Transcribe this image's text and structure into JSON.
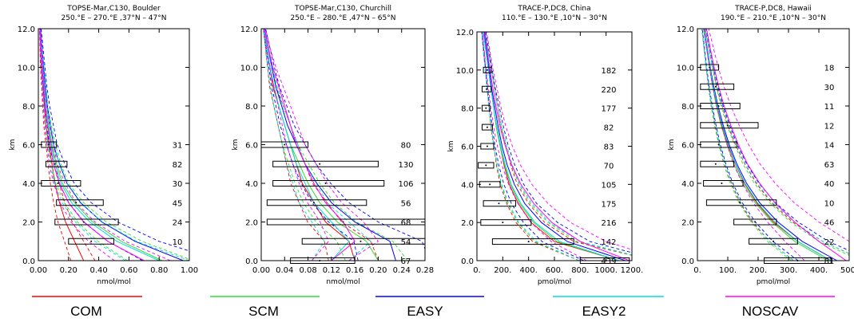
{
  "legend": [
    {
      "name": "COM",
      "color": "#ff0000"
    },
    {
      "name": "SCM",
      "color": "#33dd33"
    },
    {
      "name": "EASY",
      "color": "#0000ff"
    },
    {
      "name": "EASY2",
      "color": "#00dddd"
    },
    {
      "name": "NOSCAV",
      "color": "#ff00ff"
    }
  ],
  "chart_data": [
    {
      "type": "line",
      "title": "TOPSE-Mar,C130, Boulder",
      "subtitle": "250.°E – 270.°E ,37°N – 47°N",
      "xlabel": "nmol/mol",
      "ylabel": "km",
      "xlim": [
        0,
        1.0
      ],
      "ylim": [
        0,
        12
      ],
      "xticks": [
        0,
        0.2,
        0.4,
        0.6,
        0.8,
        1.0
      ],
      "xtick_labels": [
        "0.00",
        "0.20",
        "0.40",
        "0.60",
        "0.80",
        "1.00"
      ],
      "yticks": [
        0,
        2,
        4,
        6,
        8,
        10,
        12
      ],
      "ytick_labels": [
        "0.0",
        "2.0",
        "4.0",
        "6.0",
        "8.0",
        "10.0",
        "12.0"
      ],
      "observations": [
        {
          "alt": 1,
          "xmin": 0.2,
          "xmax": 0.5,
          "mean": 0.35,
          "n": "10"
        },
        {
          "alt": 2,
          "xmin": 0.11,
          "xmax": 0.53,
          "mean": 0.3,
          "n": "24"
        },
        {
          "alt": 3,
          "xmin": 0.12,
          "xmax": 0.43,
          "mean": 0.25,
          "n": "45"
        },
        {
          "alt": 4,
          "xmin": 0.02,
          "xmax": 0.28,
          "mean": 0.13,
          "n": "30"
        },
        {
          "alt": 5,
          "xmin": 0.05,
          "xmax": 0.19,
          "mean": 0.11,
          "n": "82"
        },
        {
          "alt": 6,
          "xmin": 0.02,
          "xmax": 0.12,
          "mean": 0.07,
          "n": "31"
        }
      ],
      "series": [
        {
          "name": "COM",
          "x": [
            0.3,
            0.24,
            0.18,
            0.14,
            0.11,
            0.09,
            0.07,
            0.05,
            0.04,
            0.03,
            0.02,
            0.015,
            0.01
          ]
        },
        {
          "name": "SCM",
          "x": [
            0.82,
            0.55,
            0.36,
            0.24,
            0.16,
            0.12,
            0.09,
            0.07,
            0.05,
            0.04,
            0.03,
            0.02,
            0.01
          ]
        },
        {
          "name": "EASY",
          "x": [
            0.96,
            0.64,
            0.42,
            0.28,
            0.19,
            0.14,
            0.1,
            0.08,
            0.06,
            0.045,
            0.035,
            0.025,
            0.015
          ]
        },
        {
          "name": "EASY2",
          "x": [
            0.8,
            0.52,
            0.34,
            0.22,
            0.15,
            0.11,
            0.085,
            0.065,
            0.05,
            0.04,
            0.03,
            0.02,
            0.01
          ]
        },
        {
          "name": "NOSCAV",
          "x": [
            0.7,
            0.46,
            0.3,
            0.2,
            0.14,
            0.1,
            0.08,
            0.06,
            0.045,
            0.035,
            0.025,
            0.018,
            0.01
          ]
        }
      ]
    },
    {
      "type": "line",
      "title": "TOPSE-Mar,C130, Churchill",
      "subtitle": "250.°E – 280.°E ,47°N – 65°N",
      "xlabel": "nmol/mol",
      "ylabel": "km",
      "xlim": [
        0,
        0.28
      ],
      "ylim": [
        0,
        12
      ],
      "xticks": [
        0,
        0.04,
        0.08,
        0.12,
        0.16,
        0.2,
        0.24,
        0.28
      ],
      "xtick_labels": [
        "0.00",
        "0.04",
        "0.08",
        "0.12",
        "0.16",
        "0.20",
        "0.24",
        "0.28"
      ],
      "yticks": [
        0,
        2,
        4,
        6,
        8,
        10,
        12
      ],
      "ytick_labels": [
        "0.0",
        "2.0",
        "4.0",
        "6.0",
        "8.0",
        "10.0",
        "12.0"
      ],
      "observations": [
        {
          "alt": 0,
          "xmin": 0.05,
          "xmax": 0.16,
          "mean": 0.1,
          "n": "67"
        },
        {
          "alt": 1,
          "xmin": 0.07,
          "xmax": 0.28,
          "mean": 0.17,
          "n": "54"
        },
        {
          "alt": 2,
          "xmin": 0.01,
          "xmax": 0.29,
          "mean": 0.14,
          "n": "68"
        },
        {
          "alt": 3,
          "xmin": 0.01,
          "xmax": 0.18,
          "mean": 0.09,
          "n": "56"
        },
        {
          "alt": 4,
          "xmin": 0.02,
          "xmax": 0.21,
          "mean": 0.11,
          "n": "106"
        },
        {
          "alt": 5,
          "xmin": 0.02,
          "xmax": 0.2,
          "mean": 0.1,
          "n": "130"
        },
        {
          "alt": 6,
          "xmin": 0.0,
          "xmax": 0.08,
          "mean": 0.04,
          "n": "80"
        }
      ],
      "series": [
        {
          "name": "COM",
          "x": [
            0.16,
            0.15,
            0.11,
            0.09,
            0.07,
            0.06,
            0.05,
            0.04,
            0.03,
            0.02,
            0.015,
            0.01,
            0.005
          ]
        },
        {
          "name": "SCM",
          "x": [
            0.2,
            0.18,
            0.13,
            0.1,
            0.08,
            0.065,
            0.05,
            0.04,
            0.03,
            0.022,
            0.015,
            0.01,
            0.005
          ]
        },
        {
          "name": "EASY",
          "x": [
            0.23,
            0.22,
            0.16,
            0.12,
            0.095,
            0.075,
            0.06,
            0.045,
            0.035,
            0.025,
            0.018,
            0.012,
            0.006
          ]
        },
        {
          "name": "EASY2",
          "x": [
            0.12,
            0.15,
            0.12,
            0.09,
            0.075,
            0.06,
            0.05,
            0.04,
            0.03,
            0.022,
            0.015,
            0.01,
            0.005
          ]
        },
        {
          "name": "NOSCAV",
          "x": [
            0.12,
            0.16,
            0.14,
            0.11,
            0.09,
            0.075,
            0.06,
            0.05,
            0.04,
            0.03,
            0.02,
            0.012,
            0.006
          ]
        }
      ]
    },
    {
      "type": "line",
      "title": "TRACE-P,DC8, China",
      "subtitle": "110.°E – 130.°E ,10°N – 30°N",
      "xlabel": "pmol/mol",
      "ylabel": "km",
      "xlim": [
        0,
        1200
      ],
      "ylim": [
        0,
        12
      ],
      "xticks": [
        0,
        200,
        400,
        600,
        800,
        1000,
        1200
      ],
      "xtick_labels": [
        "0.",
        "200.",
        "400.",
        "600.",
        "800.",
        "1000.",
        "1200."
      ],
      "yticks": [
        0,
        2,
        4,
        6,
        8,
        10,
        12
      ],
      "ytick_labels": [
        "0.0",
        "2.0",
        "4.0",
        "6.0",
        "8.0",
        "10.0",
        "12.0"
      ],
      "observations": [
        {
          "alt": 0,
          "xmin": 800,
          "xmax": 1180,
          "mean": 1000,
          "n": "439"
        },
        {
          "alt": 1,
          "xmin": 120,
          "xmax": 750,
          "mean": 400,
          "n": "142"
        },
        {
          "alt": 2,
          "xmin": 30,
          "xmax": 420,
          "mean": 200,
          "n": "216"
        },
        {
          "alt": 3,
          "xmin": 50,
          "xmax": 300,
          "mean": 170,
          "n": "175"
        },
        {
          "alt": 4,
          "xmin": 20,
          "xmax": 180,
          "mean": 100,
          "n": "105"
        },
        {
          "alt": 5,
          "xmin": 10,
          "xmax": 130,
          "mean": 70,
          "n": "70"
        },
        {
          "alt": 6,
          "xmin": 30,
          "xmax": 130,
          "mean": 80,
          "n": "83"
        },
        {
          "alt": 7,
          "xmin": 40,
          "xmax": 120,
          "mean": 80,
          "n": "82"
        },
        {
          "alt": 8,
          "xmin": 40,
          "xmax": 100,
          "mean": 70,
          "n": "177"
        },
        {
          "alt": 9,
          "xmin": 40,
          "xmax": 110,
          "mean": 75,
          "n": "220"
        },
        {
          "alt": 10,
          "xmin": 50,
          "xmax": 110,
          "mean": 80,
          "n": "182"
        }
      ],
      "series": [
        {
          "name": "COM",
          "x": [
            1100,
            600,
            420,
            320,
            250,
            210,
            180,
            150,
            130,
            110,
            90,
            70,
            50
          ]
        },
        {
          "name": "SCM",
          "x": [
            1100,
            620,
            440,
            330,
            260,
            215,
            180,
            150,
            130,
            110,
            90,
            70,
            50
          ]
        },
        {
          "name": "EASY",
          "x": [
            1150,
            700,
            500,
            370,
            290,
            235,
            195,
            165,
            140,
            115,
            95,
            75,
            55
          ]
        },
        {
          "name": "EASY2",
          "x": [
            1100,
            640,
            450,
            340,
            265,
            220,
            185,
            155,
            130,
            110,
            90,
            70,
            50
          ]
        },
        {
          "name": "NOSCAV",
          "x": [
            1180,
            800,
            580,
            440,
            340,
            270,
            220,
            180,
            150,
            125,
            100,
            80,
            60
          ]
        }
      ]
    },
    {
      "type": "line",
      "title": "TRACE-P,DC8, Hawaii",
      "subtitle": "190.°E – 210.°E ,10°N – 30°N",
      "xlabel": "pmol/mol",
      "ylabel": "km",
      "xlim": [
        0,
        500
      ],
      "ylim": [
        0,
        12
      ],
      "xticks": [
        0,
        100,
        200,
        300,
        400,
        500
      ],
      "xtick_labels": [
        "0.",
        "100.",
        "200.",
        "300.",
        "400.",
        "500."
      ],
      "yticks": [
        0,
        2,
        4,
        6,
        8,
        10,
        12
      ],
      "ytick_labels": [
        "0.0",
        "2.0",
        "4.0",
        "6.0",
        "8.0",
        "10.0",
        "12.0"
      ],
      "observations": [
        {
          "alt": 0,
          "xmin": 220,
          "xmax": 440,
          "mean": 330,
          "n": "81"
        },
        {
          "alt": 1,
          "xmin": 170,
          "xmax": 330,
          "mean": 250,
          "n": "22"
        },
        {
          "alt": 2,
          "xmin": 120,
          "xmax": 260,
          "mean": 190,
          "n": "46"
        },
        {
          "alt": 3,
          "xmin": 30,
          "xmax": 260,
          "mean": 140,
          "n": "10"
        },
        {
          "alt": 4,
          "xmin": 20,
          "xmax": 150,
          "mean": 80,
          "n": "40"
        },
        {
          "alt": 5,
          "xmin": 10,
          "xmax": 120,
          "mean": 60,
          "n": "63"
        },
        {
          "alt": 6,
          "xmin": 10,
          "xmax": 130,
          "mean": 70,
          "n": "14"
        },
        {
          "alt": 7,
          "xmin": 10,
          "xmax": 200,
          "mean": 100,
          "n": "12"
        },
        {
          "alt": 8,
          "xmin": 10,
          "xmax": 140,
          "mean": 70,
          "n": "11"
        },
        {
          "alt": 9,
          "xmin": 10,
          "xmax": 120,
          "mean": 60,
          "n": "30"
        },
        {
          "alt": 10,
          "xmin": 10,
          "xmax": 70,
          "mean": 40,
          "n": "18"
        }
      ],
      "series": [
        {
          "name": "COM",
          "x": [
            440,
            330,
            250,
            195,
            155,
            125,
            100,
            80,
            65,
            50,
            40,
            30,
            20
          ]
        },
        {
          "name": "SCM",
          "x": [
            430,
            320,
            245,
            190,
            150,
            120,
            98,
            78,
            62,
            50,
            40,
            30,
            20
          ]
        },
        {
          "name": "EASY",
          "x": [
            460,
            345,
            265,
            205,
            162,
            130,
            105,
            85,
            68,
            54,
            42,
            32,
            22
          ]
        },
        {
          "name": "EASY2",
          "x": [
            440,
            330,
            255,
            198,
            157,
            126,
            102,
            82,
            66,
            52,
            41,
            31,
            21
          ]
        },
        {
          "name": "NOSCAV",
          "x": [
            490,
            400,
            320,
            255,
            205,
            165,
            135,
            110,
            88,
            70,
            55,
            42,
            30
          ]
        }
      ]
    }
  ]
}
